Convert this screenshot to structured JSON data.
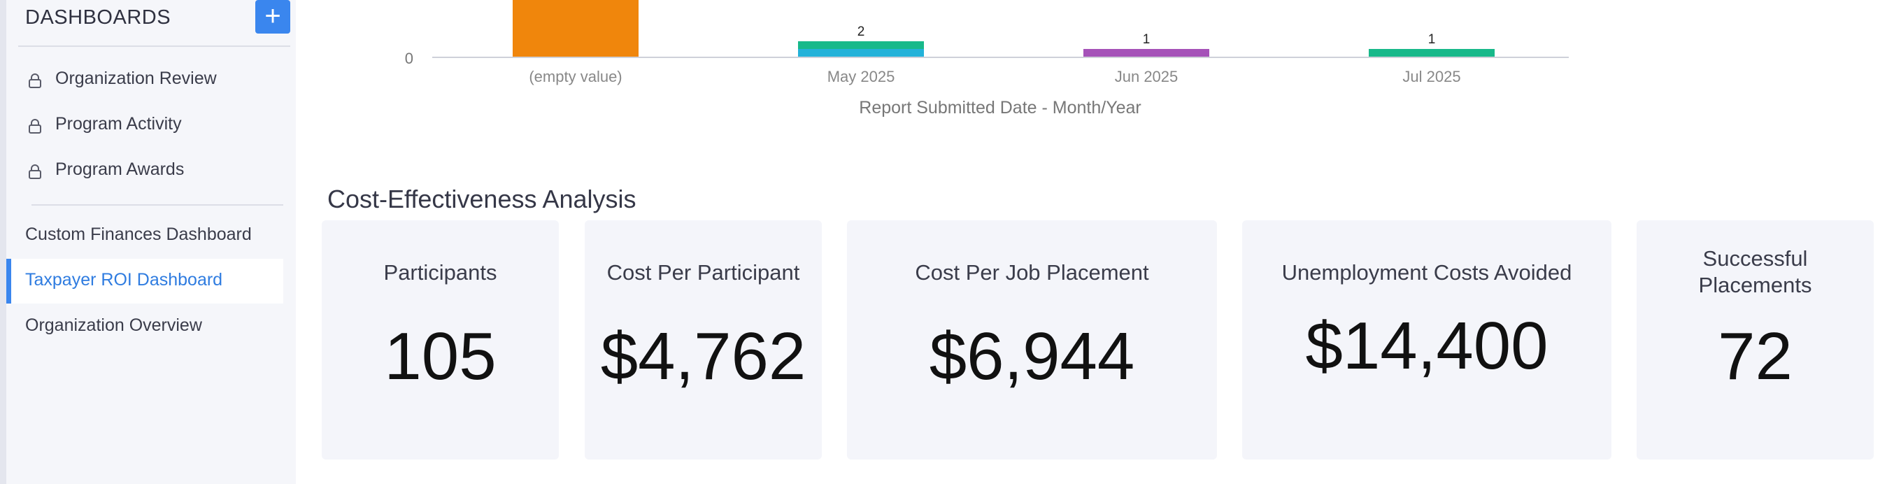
{
  "sidebar": {
    "title": "DASHBOARDS",
    "add_label": "+",
    "locked_items": [
      {
        "label": "Organization Review",
        "icon": "lock-icon"
      },
      {
        "label": "Program Activity",
        "icon": "lock-icon"
      },
      {
        "label": "Program Awards",
        "icon": "lock-icon"
      }
    ],
    "items": [
      {
        "label": "Custom Finances Dashboard"
      },
      {
        "label": "Taxpayer ROI Dashboard",
        "active": true
      },
      {
        "label": "Organization Overview"
      }
    ],
    "accent_color": "#3a86ee"
  },
  "chart_data": {
    "type": "bar",
    "xlabel": "Report Submitted Date - Month/Year",
    "y_tick_visible": "0",
    "categories": [
      "(empty value)",
      "May 2025",
      "Jun 2025",
      "Jul 2025"
    ],
    "series": [
      {
        "color": "#f0860c",
        "values": [
          null,
          null,
          null,
          null
        ]
      },
      {
        "color": "#23b2d9",
        "values": [
          null,
          1,
          null,
          null
        ]
      },
      {
        "color": "#18b98a",
        "values": [
          null,
          1,
          null,
          1
        ]
      },
      {
        "color": "#a552b8",
        "values": [
          null,
          null,
          1,
          null
        ]
      }
    ],
    "totals_labels": [
      "",
      "2",
      "1",
      "1"
    ]
  },
  "section": {
    "title": "Cost-Effectiveness Analysis",
    "cards": [
      {
        "label": "Participants",
        "value": "105"
      },
      {
        "label": "Cost Per Participant",
        "value": "$4,762"
      },
      {
        "label": "Cost Per Job Placement",
        "value": "$6,944"
      },
      {
        "label": "Unemployment Costs Avoided",
        "value": "$14,400"
      },
      {
        "label": "Successful Placements",
        "value": "72"
      }
    ]
  }
}
